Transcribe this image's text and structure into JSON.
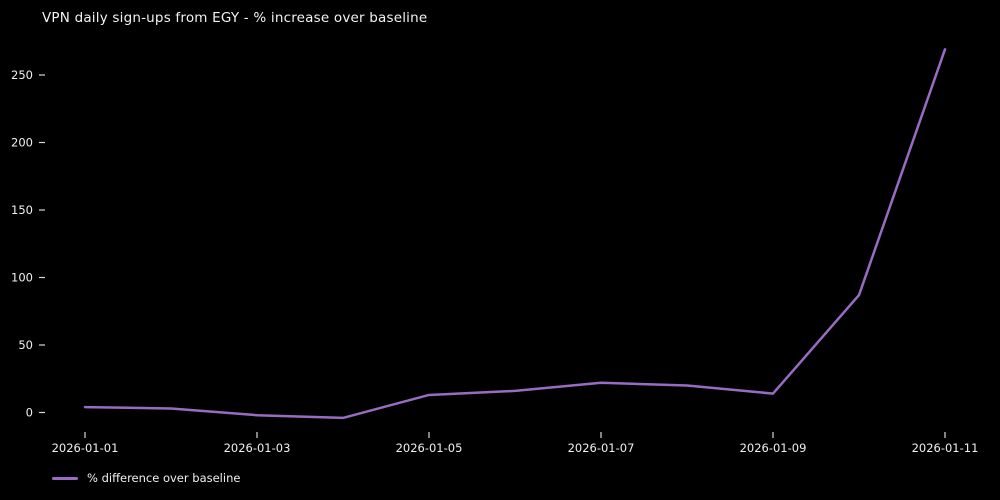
{
  "colors": {
    "background": "#000000",
    "line": "#996cc4",
    "text": "#f0f0f0"
  },
  "chart": {
    "title": "VPN daily sign-ups from EGY - % increase over baseline",
    "legend_label": "% difference over baseline"
  },
  "chart_data": {
    "type": "line",
    "title": "VPN daily sign-ups from EGY - % increase over baseline",
    "x": [
      "2026-01-01",
      "2026-01-02",
      "2026-01-03",
      "2026-01-04",
      "2026-01-05",
      "2026-01-06",
      "2026-01-07",
      "2026-01-08",
      "2026-01-09",
      "2026-01-10",
      "2026-01-11"
    ],
    "series": [
      {
        "name": "% difference over baseline",
        "values": [
          4,
          3,
          -2,
          -4,
          13,
          16,
          22,
          20,
          14,
          87,
          269
        ]
      }
    ],
    "xlabel": "",
    "ylabel": "",
    "y_ticks": [
      0,
      50,
      100,
      150,
      200,
      250
    ],
    "x_tick_labels": [
      "2026-01-01",
      "2026-01-03",
      "2026-01-05",
      "2026-01-07",
      "2026-01-09",
      "2026-01-11"
    ],
    "ylim": [
      -15,
      280
    ],
    "grid": false,
    "legend_position": "bottom-left",
    "line_color": "#996cc4",
    "background": "#000000"
  }
}
